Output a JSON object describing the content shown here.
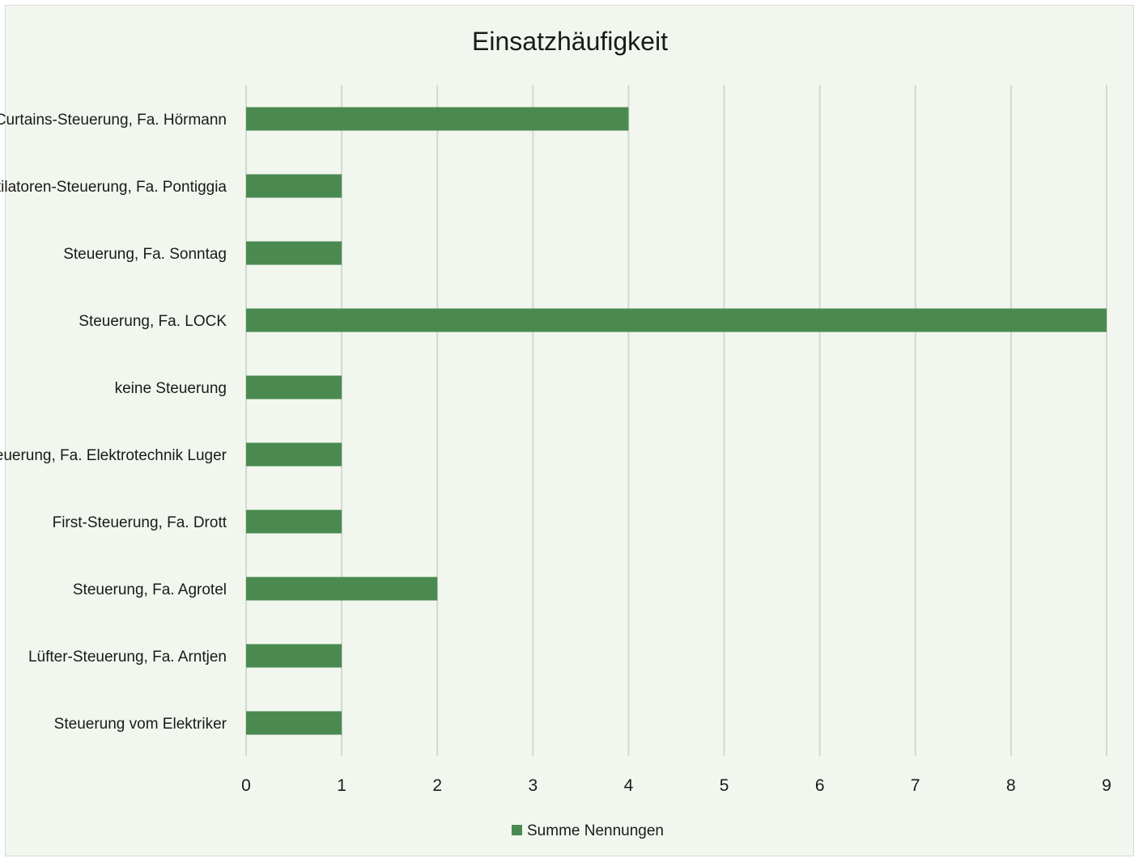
{
  "chart_data": {
    "type": "bar",
    "orientation": "horizontal",
    "title": "Einsatzhäufigkeit",
    "categories": [
      "Curtains-Steuerung, Fa. Hörmann",
      "Ventilatoren-Steuerung, Fa. Pontiggia",
      "Steuerung, Fa. Sonntag",
      "Steuerung, Fa. LOCK",
      "keine Steuerung",
      "Steuerung, Fa. Elektrotechnik Luger",
      "First-Steuerung, Fa. Drott",
      "Steuerung, Fa. Agrotel",
      "Lüfter-Steuerung, Fa. Arntjen",
      "Steuerung vom Elektriker"
    ],
    "series": [
      {
        "name": "Summe Nennungen",
        "color": "#4a8a50",
        "values": [
          4,
          1,
          1,
          9,
          1,
          1,
          1,
          2,
          1,
          1
        ]
      }
    ],
    "xlim": [
      0,
      9
    ],
    "xticks": [
      "0",
      "1",
      "2",
      "3",
      "4",
      "5",
      "6",
      "7",
      "8",
      "9"
    ],
    "grid": "vertical",
    "legend_position": "bottom"
  },
  "colors": {
    "background": "#f1f7ee",
    "bar": "#4a8a50",
    "gridline": "#d4d8d2"
  }
}
